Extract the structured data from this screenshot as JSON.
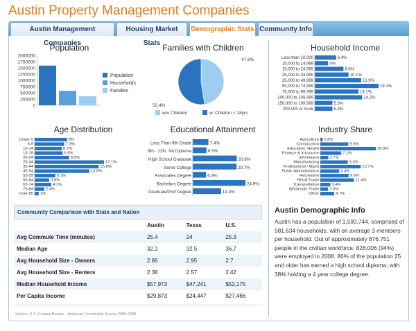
{
  "page": {
    "title": "Austin Property Management Companies"
  },
  "tabs": [
    {
      "label": "Austin Management Companies",
      "active": false
    },
    {
      "label": "Housing Market Stats",
      "active": false
    },
    {
      "label": "Demographic Stats",
      "active": true
    },
    {
      "label": "Community Info",
      "active": false
    }
  ],
  "colors": {
    "accent": "#e07b1e",
    "bar_dark": "#2a74c0",
    "bar_mid": "#5b9fd8",
    "bar_light": "#9ecdf2"
  },
  "population": {
    "title": "Population",
    "chart_data": {
      "type": "bar",
      "ticks": [
        "2000000",
        "1750000",
        "1500000",
        "1250000",
        "1000000",
        "750000",
        "500000",
        "250000",
        "0"
      ],
      "ylim": [
        0,
        2000000
      ],
      "series": [
        {
          "name": "Population",
          "value": 1590744
        },
        {
          "name": "Households",
          "value": 581634
        },
        {
          "name": "Families",
          "value": 360000
        }
      ]
    }
  },
  "families": {
    "title": "Families with Children",
    "chart_data": {
      "type": "pie",
      "slices": [
        {
          "name": "w/o Children",
          "value": 47.6,
          "label": "47.6%"
        },
        {
          "name": "w. Children < 18yrs",
          "value": 52.4,
          "label": "52.4%"
        }
      ]
    }
  },
  "household_income": {
    "title": "Household Income",
    "chart_data": {
      "type": "bar",
      "categories": [
        "Less than 10,000",
        "10,000 to 14,999",
        "15,000 to 24,999",
        "25,000 to 34,999",
        "35,000 to 49,999",
        "50,000 to 74,999",
        "75,000 to 99,999",
        "100,000 to 149,999",
        "150,000 to 199,999",
        "200,000 or more"
      ],
      "values": [
        6.4,
        4,
        8.6,
        10.1,
        13.9,
        19.1,
        13.1,
        14.2,
        5.3,
        5.3
      ],
      "labels": [
        "6.4%",
        "4%",
        "8.6%",
        "10.1%",
        "13.9%",
        "19.1%",
        "13.1%",
        "14.2%",
        "5.3%",
        "5.3%"
      ]
    }
  },
  "age": {
    "title": "Age Distribution",
    "chart_data": {
      "type": "bar",
      "categories": [
        "Under 5",
        "5-9",
        "10-14",
        "15-19",
        "20-24",
        "25-34",
        "35-44",
        "45-54",
        "55-59",
        "60-64",
        "65-74",
        "75-84",
        "Over 85"
      ],
      "values": [
        8,
        7.3,
        6.7,
        6.9,
        8.5,
        17.1,
        15.8,
        13.5,
        5.1,
        3.6,
        4.1,
        2.4,
        1
      ],
      "labels": [
        "8%",
        "7.3%",
        "6.7%",
        "6.9%",
        "8.5%",
        "17.1%",
        "15.8%",
        "13.5%",
        "5.1%",
        "3.6%",
        "4.1%",
        "2.4%",
        "1%"
      ]
    }
  },
  "education": {
    "title": "Educational Attainment",
    "chart_data": {
      "type": "bar",
      "categories": [
        "Less Than 9th Grade",
        "9th - 12th, No Diploma",
        "High School Graduate",
        "Some College",
        "Associates Degree",
        "Bachelors Degree",
        "Graduate/Prof Degree"
      ],
      "values": [
        7.4,
        6.5,
        20.8,
        20.7,
        6.3,
        24.9,
        13.4
      ],
      "labels": [
        "7.4%",
        "6.5%",
        "20.8%",
        "20.7%",
        "6.3%",
        "24.9%",
        "13.4%"
      ]
    }
  },
  "industry": {
    "title": "Industry Share",
    "chart_data": {
      "type": "bar",
      "categories": [
        "Agriculture",
        "Construction",
        "Education, Health",
        "Finance & Insurance",
        "Information",
        "Manufacturing",
        "Professional / Mgmt",
        "Public Administration",
        "Recreation",
        "Retail Trade",
        "Transportation",
        "Wholesale Trade",
        "Other"
      ],
      "values": [
        0.8,
        9.5,
        18.8,
        7.1,
        2.7,
        9.3,
        13.7,
        6.4,
        9.6,
        11.4,
        3.4,
        2.6,
        4.7
      ],
      "labels": [
        "0.8%",
        "9.5%",
        "18.8%",
        "7.1%",
        "2.7%",
        "9.3%",
        "13.7%",
        "6.4%",
        "9.6%",
        "11.4%",
        "3.4%",
        "2.6%",
        "4.7%"
      ]
    }
  },
  "comparison": {
    "heading": "Community Comparison with State and Nation",
    "columns": [
      "Austin",
      "Texas",
      "U.S."
    ],
    "rows": [
      {
        "label": "Avg Commute Time (minutes)",
        "values": [
          "25.4",
          "24",
          "25.3"
        ]
      },
      {
        "label": "Median Age",
        "values": [
          "32.2",
          "32.5",
          "36.7"
        ]
      },
      {
        "label": "Avg Household Size - Owners",
        "values": [
          "2.86",
          "2.95",
          "2.7"
        ]
      },
      {
        "label": "Avg Household Size - Renters",
        "values": [
          "2.38",
          "2.57",
          "2.42"
        ]
      },
      {
        "label": "Median Household Income",
        "values": [
          "$57,973",
          "$47,241",
          "$52,175"
        ]
      },
      {
        "label": "Per Capita Income",
        "values": [
          "$29,873",
          "$24,447",
          "$27,466"
        ]
      }
    ],
    "source": "Source: U.S. Census Bureau - American Community Survey 2006-2008"
  },
  "demographic_info": {
    "title": "Austin Demographic Info",
    "text": "Austin has a population of 1,590,744, comprised of 581,634 households, with on average 3 members per household. Out of approximately 876,751 people in the civilian workforce, 828,006 (94%) were employed in 2008. 86% of the population 25 and older has earned a high school diploma, with 38% holding a 4 year college degree."
  }
}
